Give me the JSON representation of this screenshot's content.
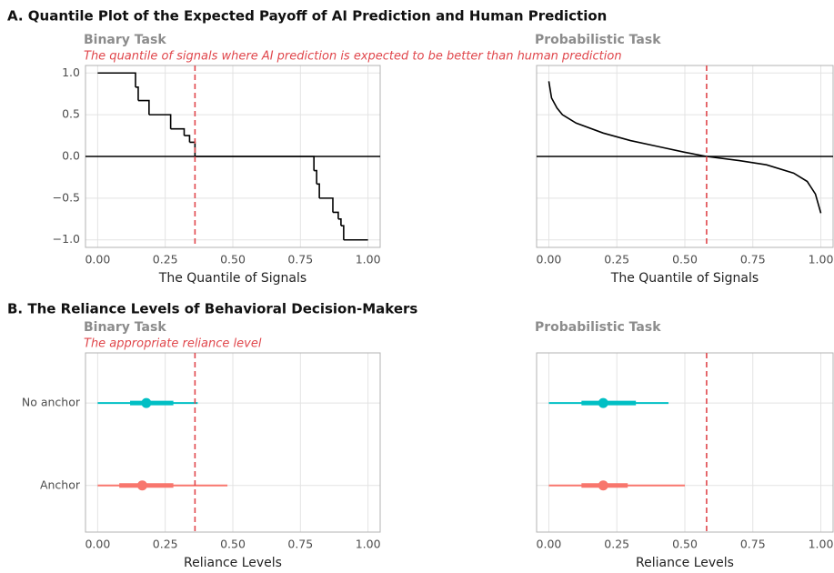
{
  "sections": [
    {
      "title": "A. Quantile Plot of the Expected Payoff of AI Prediction and Human Prediction"
    },
    {
      "title": "B. The Reliance Levels of Behavioral Decision-Makers"
    }
  ],
  "chart_data": [
    {
      "type": "step",
      "title": "Binary Task",
      "subtitle": "The quantile of signals where AI prediction is expected to be better than human prediction",
      "xlabel": "The Quantile of Signals",
      "x": [
        0,
        0.14,
        0.15,
        0.19,
        0.27,
        0.32,
        0.34,
        0.36,
        0.8,
        0.81,
        0.82,
        0.87,
        0.89,
        0.9,
        0.91,
        1.0
      ],
      "values": [
        1,
        0.83,
        0.67,
        0.5,
        0.33,
        0.25,
        0.17,
        0,
        -0.17,
        -0.33,
        -0.5,
        -0.67,
        -0.75,
        -0.83,
        -1,
        -1
      ],
      "color": "#000000",
      "vline": 0.36,
      "vline_color": "#e0474c",
      "hline": 0,
      "xlim": [
        -0.045,
        1.045
      ],
      "xticks": [
        {
          "value": 0,
          "label": "0.00"
        },
        {
          "value": 0.25,
          "label": "0.25"
        },
        {
          "value": 0.5,
          "label": "0.50"
        },
        {
          "value": 0.75,
          "label": "0.75"
        },
        {
          "value": 1,
          "label": "1.00"
        }
      ],
      "ylim": [
        -1.09,
        1.09
      ],
      "yticks": [
        {
          "value": 1,
          "label": "1.0"
        },
        {
          "value": 0.5,
          "label": "0.5"
        },
        {
          "value": 0,
          "label": "0.0"
        },
        {
          "value": -0.5,
          "label": "−0.5"
        },
        {
          "value": -1,
          "label": "−1.0"
        }
      ],
      "grid": true
    },
    {
      "type": "line",
      "title": "Probabilistic Task",
      "xlabel": "The Quantile of Signals",
      "x": [
        0,
        0.01,
        0.03,
        0.05,
        0.1,
        0.2,
        0.3,
        0.4,
        0.5,
        0.58,
        0.7,
        0.8,
        0.9,
        0.95,
        0.98,
        1.0
      ],
      "values": [
        0.9,
        0.7,
        0.58,
        0.5,
        0.4,
        0.28,
        0.19,
        0.12,
        0.05,
        0,
        -0.05,
        -0.1,
        -0.2,
        -0.3,
        -0.45,
        -0.68
      ],
      "color": "#000000",
      "vline": 0.58,
      "vline_color": "#e0474c",
      "hline": 0,
      "xlim": [
        -0.045,
        1.045
      ],
      "xticks": [
        {
          "value": 0,
          "label": "0.00"
        },
        {
          "value": 0.25,
          "label": "0.25"
        },
        {
          "value": 0.5,
          "label": "0.50"
        },
        {
          "value": 0.75,
          "label": "0.75"
        },
        {
          "value": 1,
          "label": "1.00"
        }
      ],
      "ylim": [
        -1.09,
        1.09
      ],
      "yticks": [
        1,
        0.5,
        0,
        -0.5,
        -1
      ],
      "grid": true
    },
    {
      "type": "pointinterval",
      "title": "Binary Task",
      "subtitle": "The appropriate reliance level",
      "xlabel": "Reliance Levels",
      "categories": [
        "No anchor",
        "Anchor"
      ],
      "values": [
        0.18,
        0.165
      ],
      "inner_low": [
        0.12,
        0.08
      ],
      "inner_high": [
        0.28,
        0.28
      ],
      "outer_low": [
        0,
        0
      ],
      "outer_high": [
        0.37,
        0.48
      ],
      "colors": [
        "#00bfc4",
        "#f8766d"
      ],
      "vline": 0.36,
      "vline_color": "#e0474c",
      "xlim": [
        -0.045,
        1.045
      ],
      "xticks": [
        {
          "value": 0,
          "label": "0.00"
        },
        {
          "value": 0.25,
          "label": "0.25"
        },
        {
          "value": 0.5,
          "label": "0.50"
        },
        {
          "value": 0.75,
          "label": "0.75"
        },
        {
          "value": 1,
          "label": "1.00"
        }
      ],
      "grid": true
    },
    {
      "type": "pointinterval",
      "title": "Probabilistic Task",
      "xlabel": "Reliance Levels",
      "values": [
        0.2,
        0.2
      ],
      "inner_low": [
        0.12,
        0.12
      ],
      "inner_high": [
        0.32,
        0.29
      ],
      "outer_low": [
        0,
        0
      ],
      "outer_high": [
        0.44,
        0.5
      ],
      "colors": [
        "#00bfc4",
        "#f8766d"
      ],
      "vline": 0.58,
      "vline_color": "#e0474c",
      "xlim": [
        -0.045,
        1.045
      ],
      "xticks": [
        {
          "value": 0,
          "label": "0.00"
        },
        {
          "value": 0.25,
          "label": "0.25"
        },
        {
          "value": 0.5,
          "label": "0.50"
        },
        {
          "value": 0.75,
          "label": "0.75"
        },
        {
          "value": 1,
          "label": "1.00"
        }
      ],
      "grid": true
    }
  ]
}
